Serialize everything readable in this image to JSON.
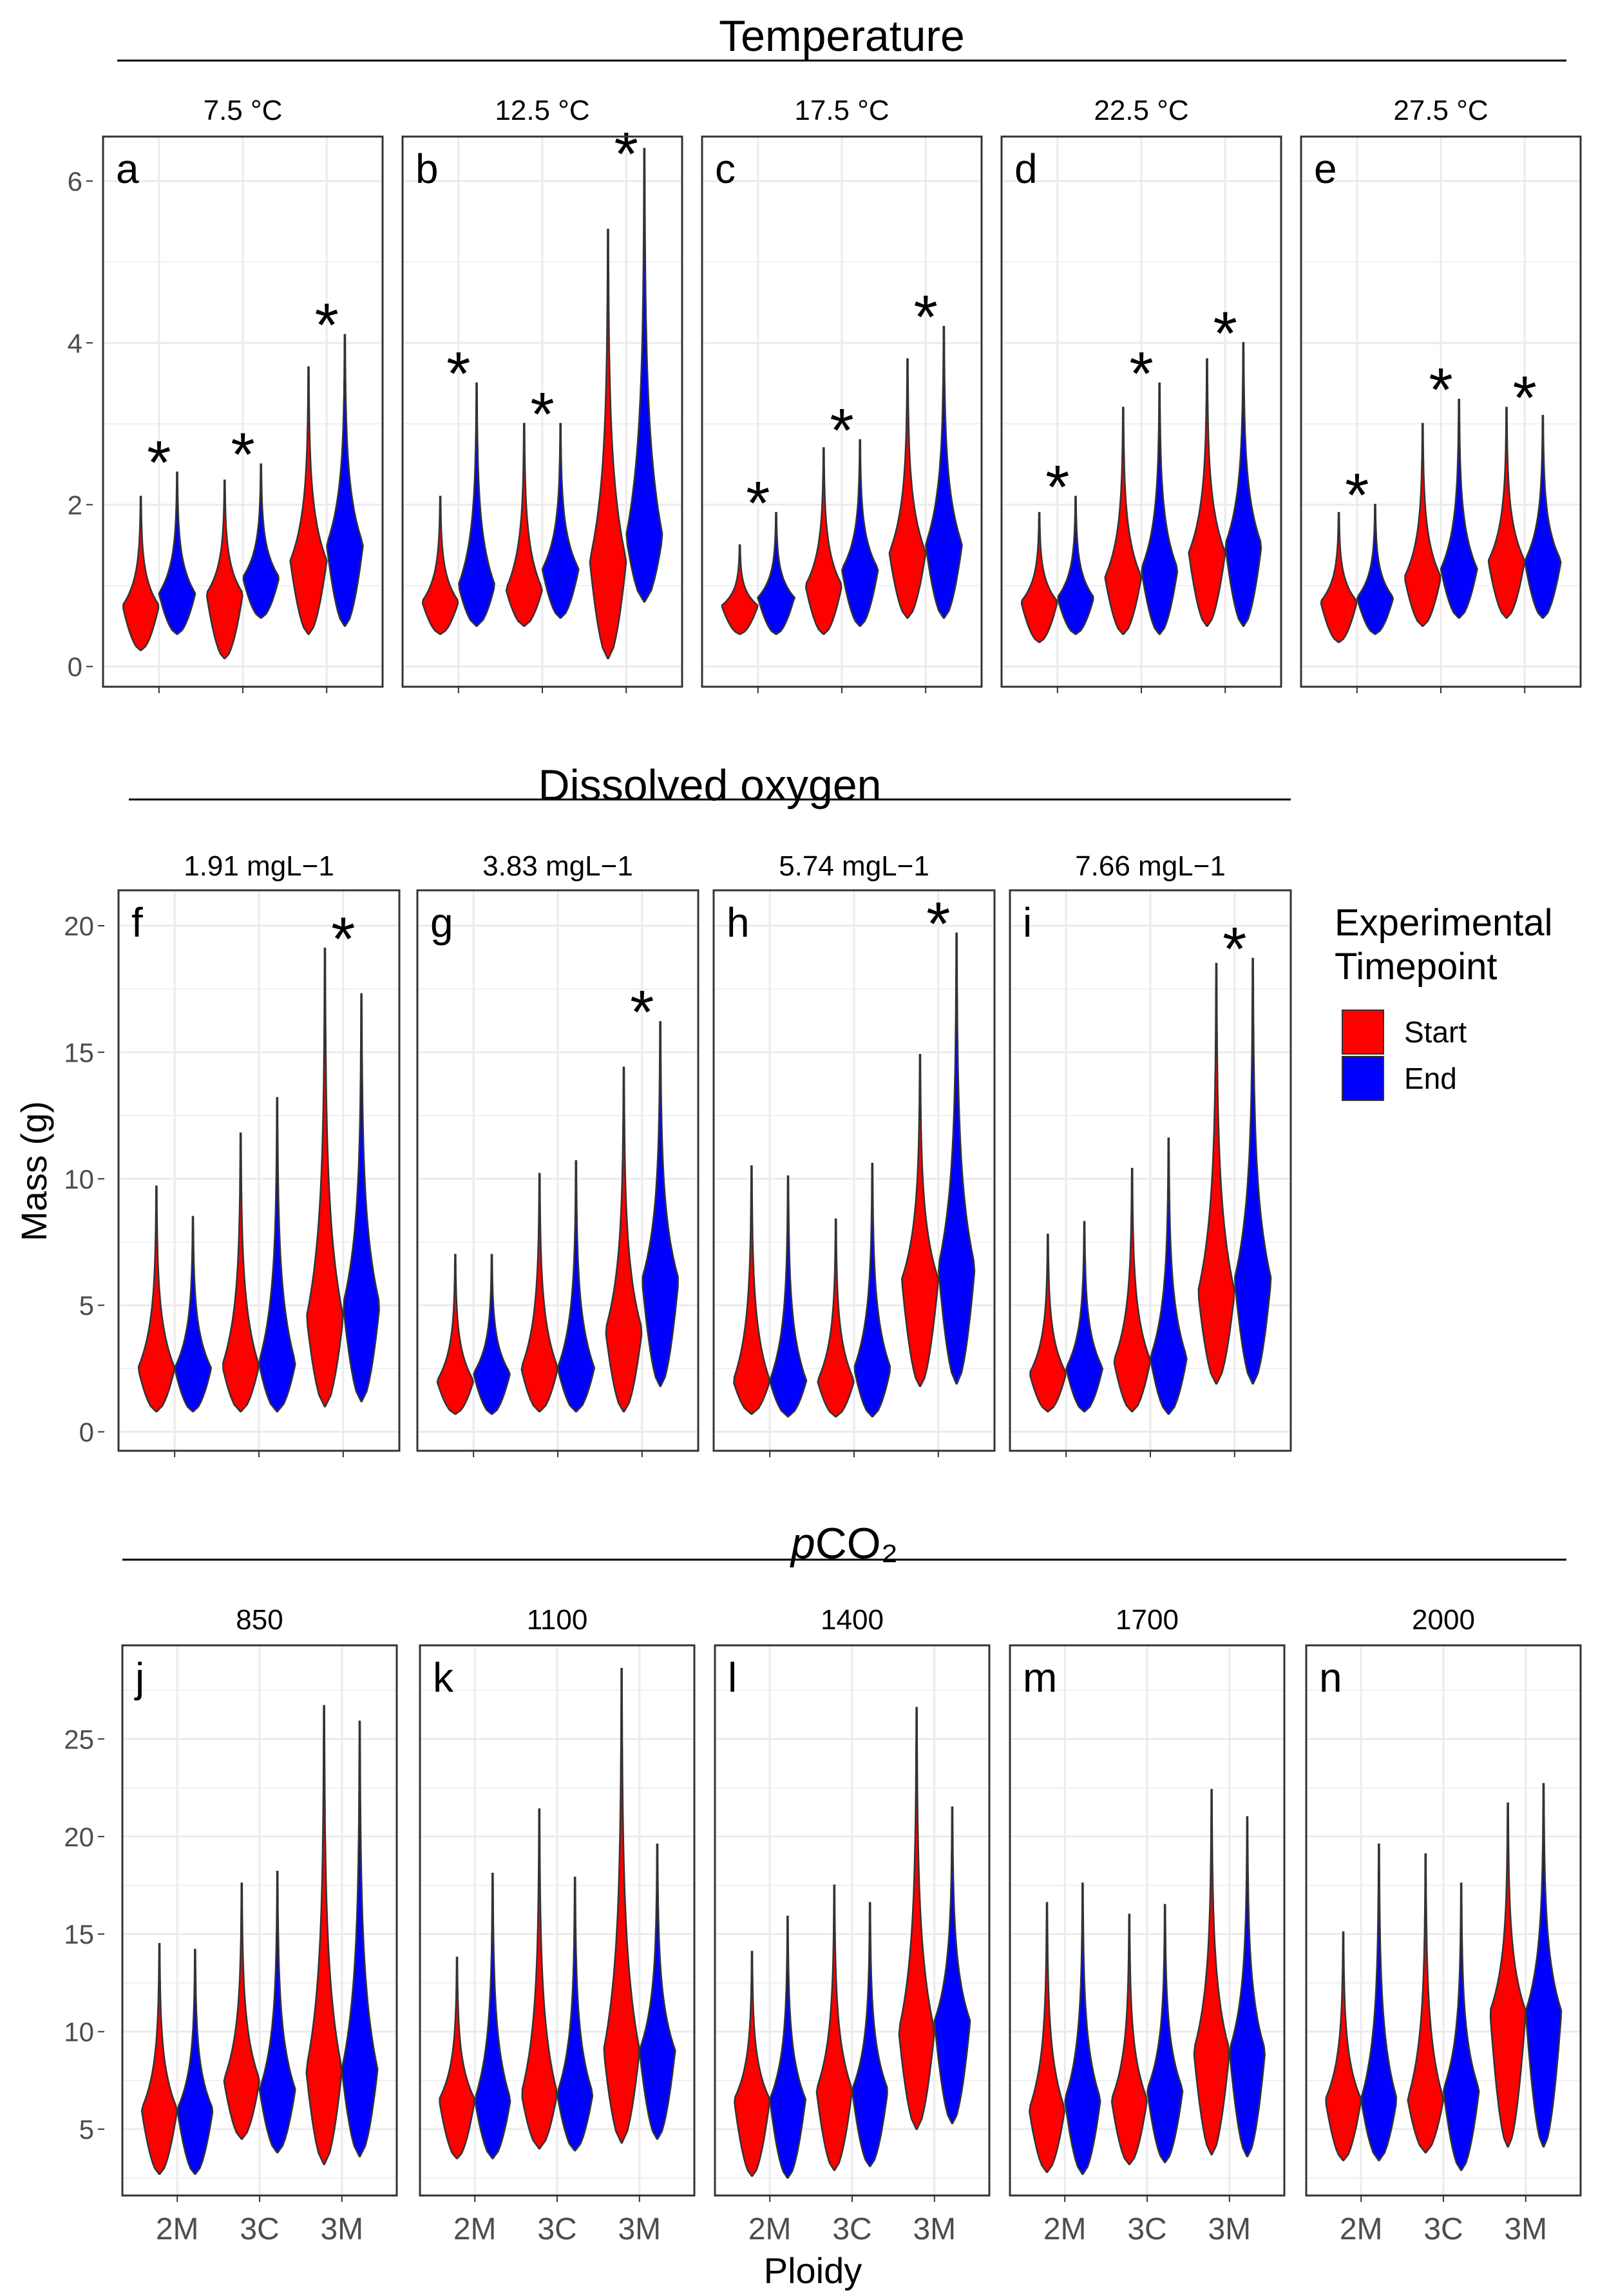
{
  "chart_data": {
    "type": "violin",
    "y_axis_title": "Mass (g)",
    "x_axis_title": "Ploidy",
    "x_categories": [
      "2M",
      "3C",
      "3M"
    ],
    "legend": {
      "title": "Experimental\nTimepoint",
      "entries": [
        {
          "label": "Start",
          "color": "#FF0000"
        },
        {
          "label": "End",
          "color": "#0000FF"
        }
      ]
    },
    "sections": [
      {
        "title": "Temperature",
        "y_ticks": [
          0,
          2,
          4,
          6
        ],
        "panels": [
          {
            "letter": "a",
            "strip": "7.5 °C",
            "start": [
              {
                "min": 0.2,
                "max": 2.1,
                "median": 0.75
              },
              {
                "min": 0.1,
                "max": 2.3,
                "median": 0.9
              },
              {
                "min": 0.4,
                "max": 3.7,
                "median": 1.3
              }
            ],
            "end": [
              {
                "min": 0.4,
                "max": 2.4,
                "median": 0.9
              },
              {
                "min": 0.6,
                "max": 2.5,
                "median": 1.1
              },
              {
                "min": 0.5,
                "max": 4.1,
                "median": 1.5
              }
            ],
            "significant": [
              true,
              true,
              true
            ]
          },
          {
            "letter": "b",
            "strip": "12.5 °C",
            "start": [
              {
                "min": 0.4,
                "max": 2.1,
                "median": 0.8
              },
              {
                "min": 0.5,
                "max": 3.0,
                "median": 0.95
              },
              {
                "min": 0.1,
                "max": 5.4,
                "median": 1.3
              }
            ],
            "end": [
              {
                "min": 0.5,
                "max": 3.5,
                "median": 1.0
              },
              {
                "min": 0.6,
                "max": 3.0,
                "median": 1.2
              },
              {
                "min": 0.8,
                "max": 6.4,
                "median": 1.6
              }
            ],
            "significant": [
              true,
              true,
              true
            ]
          },
          {
            "letter": "c",
            "strip": "17.5 °C",
            "start": [
              {
                "min": 0.4,
                "max": 1.5,
                "median": 0.75
              },
              {
                "min": 0.4,
                "max": 2.7,
                "median": 1.0
              },
              {
                "min": 0.6,
                "max": 3.8,
                "median": 1.4
              }
            ],
            "end": [
              {
                "min": 0.4,
                "max": 1.9,
                "median": 0.85
              },
              {
                "min": 0.5,
                "max": 2.8,
                "median": 1.2
              },
              {
                "min": 0.6,
                "max": 4.2,
                "median": 1.5
              }
            ],
            "significant": [
              true,
              true,
              true
            ]
          },
          {
            "letter": "d",
            "strip": "22.5 °C",
            "start": [
              {
                "min": 0.3,
                "max": 1.9,
                "median": 0.8
              },
              {
                "min": 0.4,
                "max": 3.2,
                "median": 1.1
              },
              {
                "min": 0.5,
                "max": 3.8,
                "median": 1.4
              }
            ],
            "end": [
              {
                "min": 0.4,
                "max": 2.1,
                "median": 0.85
              },
              {
                "min": 0.4,
                "max": 3.5,
                "median": 1.2
              },
              {
                "min": 0.5,
                "max": 4.0,
                "median": 1.5
              }
            ],
            "significant": [
              true,
              true,
              true
            ]
          },
          {
            "letter": "e",
            "strip": "27.5 °C",
            "start": [
              {
                "min": 0.3,
                "max": 1.9,
                "median": 0.8
              },
              {
                "min": 0.5,
                "max": 3.0,
                "median": 1.1
              },
              {
                "min": 0.6,
                "max": 3.2,
                "median": 1.3
              }
            ],
            "end": [
              {
                "min": 0.4,
                "max": 2.0,
                "median": 0.85
              },
              {
                "min": 0.6,
                "max": 3.3,
                "median": 1.2
              },
              {
                "min": 0.6,
                "max": 3.1,
                "median": 1.3
              }
            ],
            "significant": [
              true,
              true,
              true
            ]
          }
        ]
      },
      {
        "title": "Dissolved oxygen",
        "y_ticks": [
          0,
          5,
          10,
          15,
          20
        ],
        "panels": [
          {
            "letter": "f",
            "strip": "1.91 mgL−1",
            "start": [
              {
                "min": 0.8,
                "max": 9.7,
                "median": 2.5
              },
              {
                "min": 0.8,
                "max": 11.8,
                "median": 2.6
              },
              {
                "min": 1.0,
                "max": 19.1,
                "median": 4.5
              }
            ],
            "end": [
              {
                "min": 0.8,
                "max": 8.5,
                "median": 2.5
              },
              {
                "min": 0.8,
                "max": 13.2,
                "median": 2.7
              },
              {
                "min": 1.2,
                "max": 17.3,
                "median": 5.0
              }
            ],
            "significant": [
              false,
              false,
              true
            ]
          },
          {
            "letter": "g",
            "strip": "3.83 mgL−1",
            "start": [
              {
                "min": 0.7,
                "max": 7.0,
                "median": 2.0
              },
              {
                "min": 0.8,
                "max": 10.2,
                "median": 2.5
              },
              {
                "min": 0.8,
                "max": 14.4,
                "median": 4.0
              }
            ],
            "end": [
              {
                "min": 0.7,
                "max": 7.0,
                "median": 2.3
              },
              {
                "min": 0.8,
                "max": 10.7,
                "median": 2.5
              },
              {
                "min": 1.8,
                "max": 16.2,
                "median": 6.0
              }
            ],
            "significant": [
              false,
              false,
              true
            ]
          },
          {
            "letter": "h",
            "strip": "5.74 mgL−1",
            "start": [
              {
                "min": 0.7,
                "max": 10.5,
                "median": 2.0
              },
              {
                "min": 0.6,
                "max": 8.4,
                "median": 2.0
              },
              {
                "min": 1.8,
                "max": 14.9,
                "median": 6.0
              }
            ],
            "end": [
              {
                "min": 0.6,
                "max": 10.1,
                "median": 2.0
              },
              {
                "min": 0.6,
                "max": 10.6,
                "median": 2.5
              },
              {
                "min": 1.9,
                "max": 19.7,
                "median": 6.5
              }
            ],
            "significant": [
              false,
              false,
              true
            ]
          },
          {
            "letter": "i",
            "strip": "7.66 mgL−1",
            "start": [
              {
                "min": 0.8,
                "max": 7.8,
                "median": 2.3
              },
              {
                "min": 0.8,
                "max": 10.4,
                "median": 2.8
              },
              {
                "min": 1.9,
                "max": 18.5,
                "median": 5.5
              }
            ],
            "end": [
              {
                "min": 0.8,
                "max": 8.3,
                "median": 2.5
              },
              {
                "min": 0.7,
                "max": 11.6,
                "median": 2.9
              },
              {
                "min": 1.9,
                "max": 18.7,
                "median": 6.0
              }
            ],
            "significant": [
              false,
              false,
              true
            ]
          }
        ]
      },
      {
        "title_prefix": "p",
        "title": "CO₂",
        "y_ticks": [
          5,
          10,
          15,
          20,
          25
        ],
        "panels": [
          {
            "letter": "j",
            "strip": "850",
            "start": [
              {
                "min": 2.7,
                "max": 14.5,
                "median": 6.0
              },
              {
                "min": 4.5,
                "max": 17.6,
                "median": 7.5
              },
              {
                "min": 3.2,
                "max": 26.7,
                "median": 8.0
              }
            ],
            "end": [
              {
                "min": 2.7,
                "max": 14.2,
                "median": 6.0
              },
              {
                "min": 3.8,
                "max": 18.2,
                "median": 7.0
              },
              {
                "min": 3.6,
                "max": 25.9,
                "median": 8.0
              }
            ],
            "significant": [
              false,
              false,
              false
            ]
          },
          {
            "letter": "k",
            "strip": "1100",
            "start": [
              {
                "min": 3.5,
                "max": 13.8,
                "median": 6.5
              },
              {
                "min": 4.0,
                "max": 21.4,
                "median": 6.8
              },
              {
                "min": 4.3,
                "max": 28.6,
                "median": 9.0
              }
            ],
            "end": [
              {
                "min": 3.5,
                "max": 18.1,
                "median": 6.5
              },
              {
                "min": 3.9,
                "max": 17.9,
                "median": 6.8
              },
              {
                "min": 4.5,
                "max": 19.6,
                "median": 9.0
              }
            ],
            "significant": [
              false,
              false,
              false
            ]
          },
          {
            "letter": "l",
            "strip": "1400",
            "start": [
              {
                "min": 2.6,
                "max": 14.1,
                "median": 6.5
              },
              {
                "min": 2.9,
                "max": 17.5,
                "median": 7.0
              },
              {
                "min": 5.0,
                "max": 26.6,
                "median": 10.0
              }
            ],
            "end": [
              {
                "min": 2.5,
                "max": 15.9,
                "median": 6.5
              },
              {
                "min": 3.1,
                "max": 16.6,
                "median": 7.0
              },
              {
                "min": 5.3,
                "max": 21.5,
                "median": 10.5
              }
            ],
            "significant": [
              false,
              false,
              false
            ]
          },
          {
            "letter": "m",
            "strip": "1700",
            "start": [
              {
                "min": 2.8,
                "max": 16.6,
                "median": 6.0
              },
              {
                "min": 3.2,
                "max": 16.0,
                "median": 6.5
              },
              {
                "min": 3.7,
                "max": 22.4,
                "median": 9.0
              }
            ],
            "end": [
              {
                "min": 2.7,
                "max": 17.6,
                "median": 6.5
              },
              {
                "min": 3.3,
                "max": 16.5,
                "median": 7.0
              },
              {
                "min": 3.6,
                "max": 21.0,
                "median": 9.0
              }
            ],
            "significant": [
              false,
              false,
              false
            ]
          },
          {
            "letter": "n",
            "strip": "2000",
            "start": [
              {
                "min": 3.4,
                "max": 15.1,
                "median": 6.5
              },
              {
                "min": 3.8,
                "max": 19.1,
                "median": 6.5
              },
              {
                "min": 4.1,
                "max": 21.7,
                "median": 11.0
              }
            ],
            "end": [
              {
                "min": 3.4,
                "max": 19.6,
                "median": 6.5
              },
              {
                "min": 2.9,
                "max": 17.6,
                "median": 7.0
              },
              {
                "min": 4.1,
                "max": 22.7,
                "median": 11.0
              }
            ],
            "significant": [
              false,
              false,
              false
            ]
          }
        ]
      }
    ]
  }
}
